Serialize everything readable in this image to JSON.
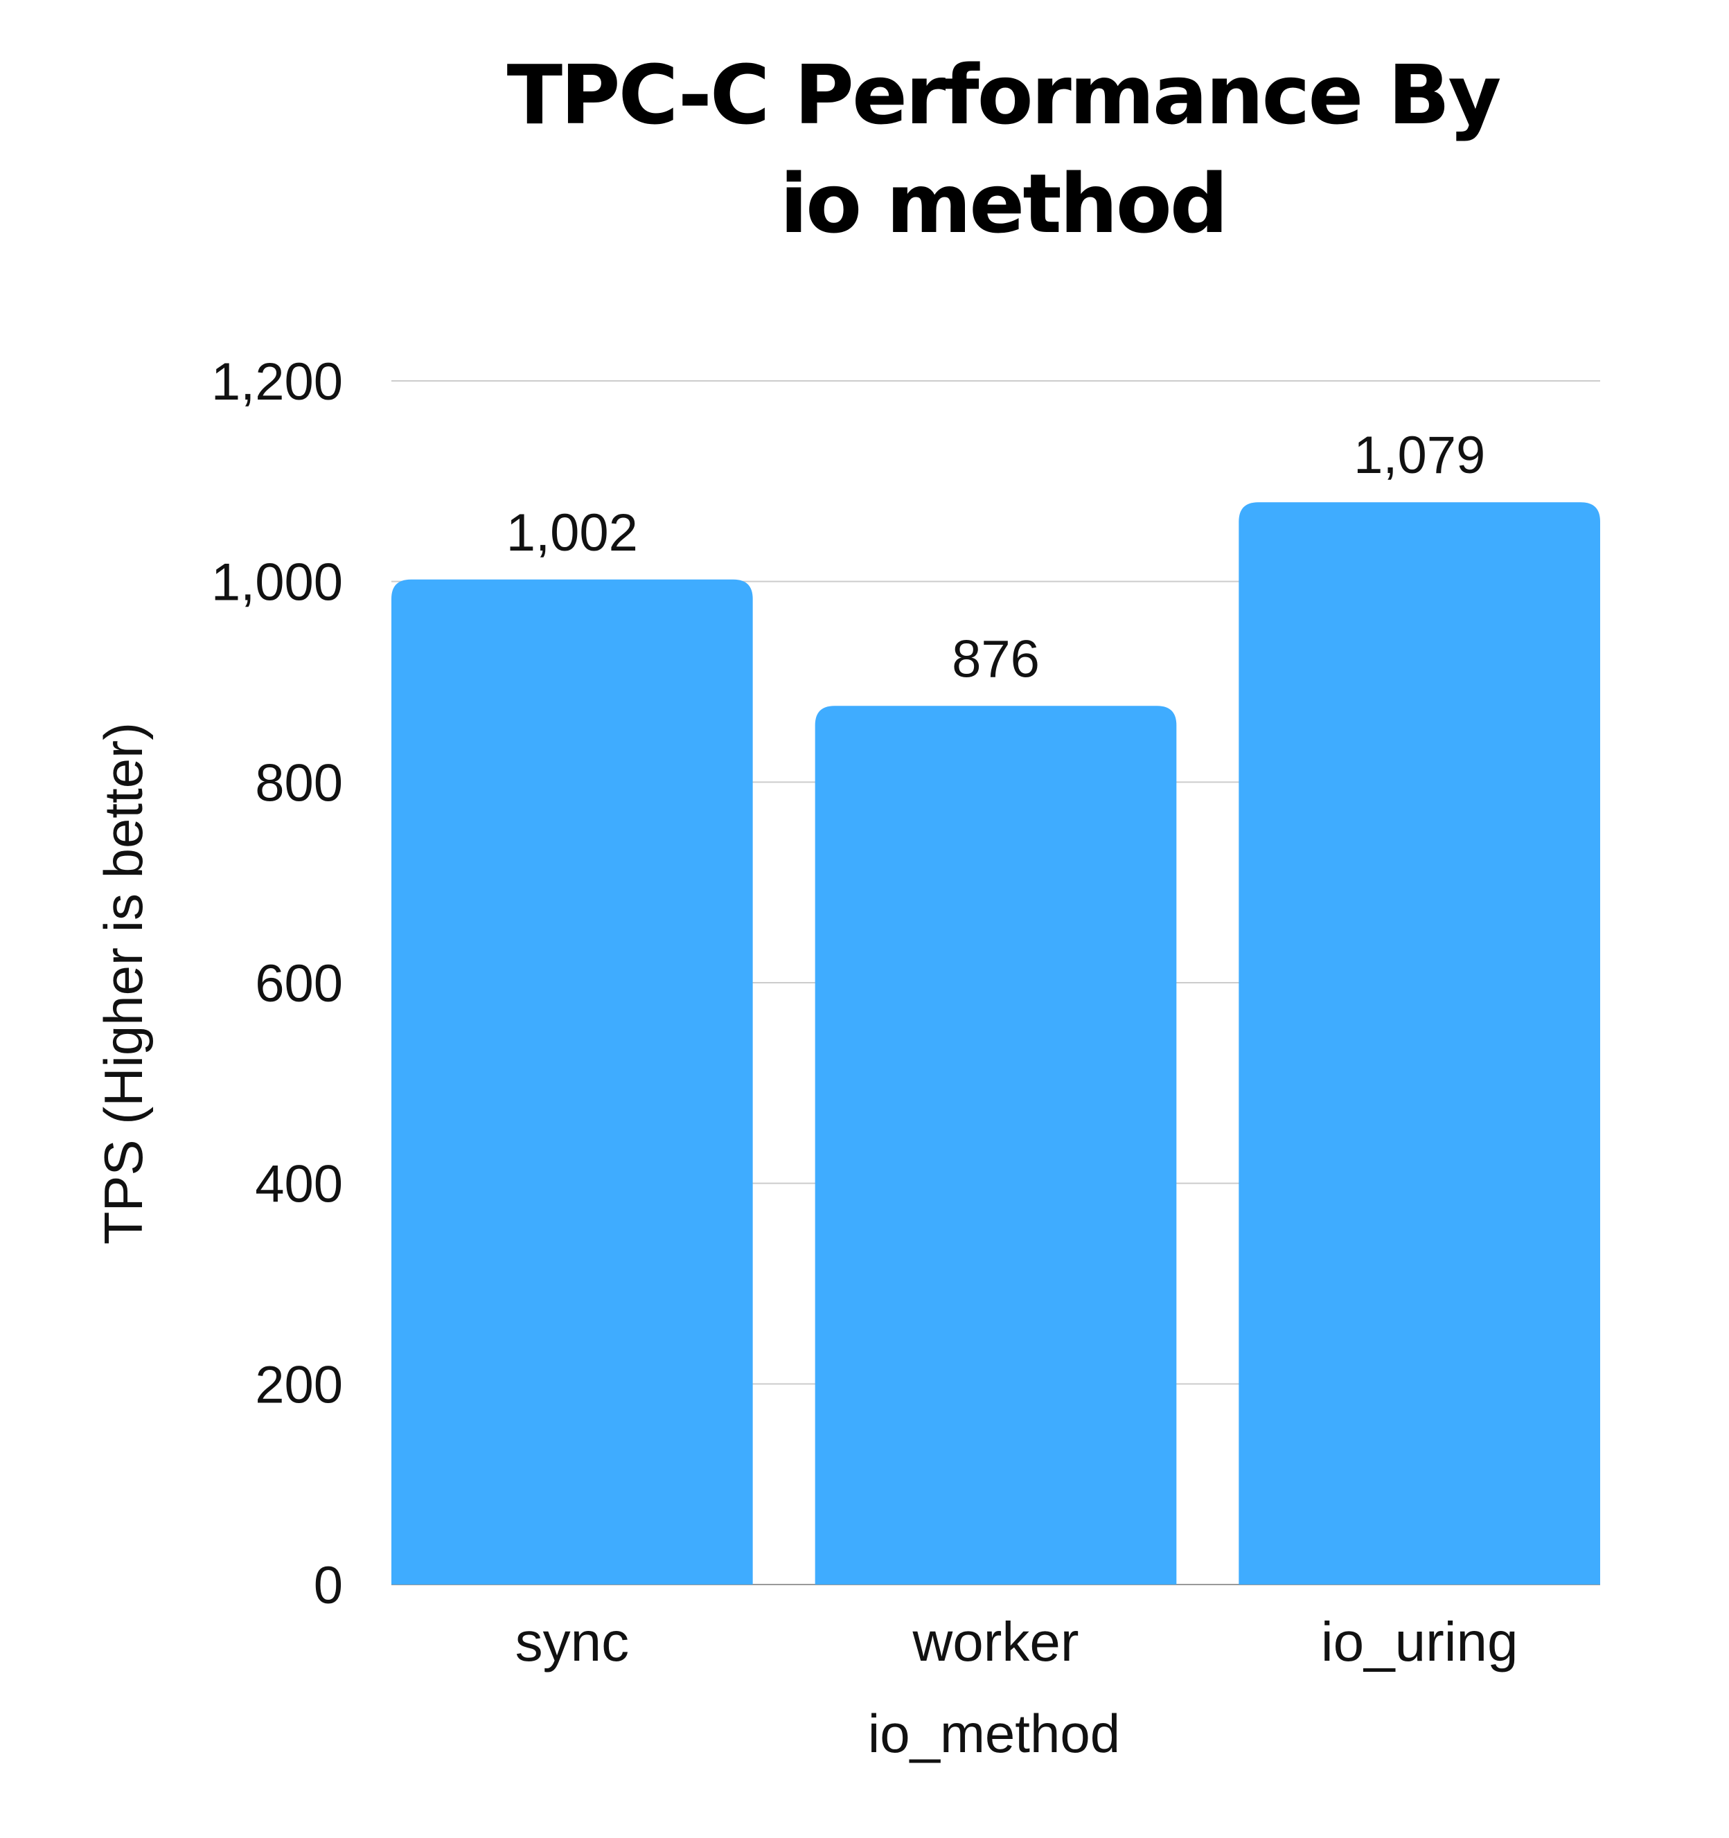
{
  "chart_data": {
    "type": "bar",
    "title_lines": [
      "TPC-C Performance By",
      "io  method"
    ],
    "xlabel": "io_method",
    "ylabel": "TPS (Higher is better)",
    "categories": [
      "sync",
      "worker",
      "io_uring"
    ],
    "values": [
      1002,
      876,
      1079
    ],
    "value_labels": [
      "1,002",
      "876",
      "1,079"
    ],
    "ylim": [
      0,
      1200
    ],
    "yticks": [
      0,
      200,
      400,
      600,
      800,
      1000,
      1200
    ],
    "ytick_labels": [
      "0",
      "200",
      "400",
      "600",
      "800",
      "1,000",
      "1,200"
    ],
    "grid": true,
    "legend": "none",
    "bar_color": "#3FACFF"
  }
}
